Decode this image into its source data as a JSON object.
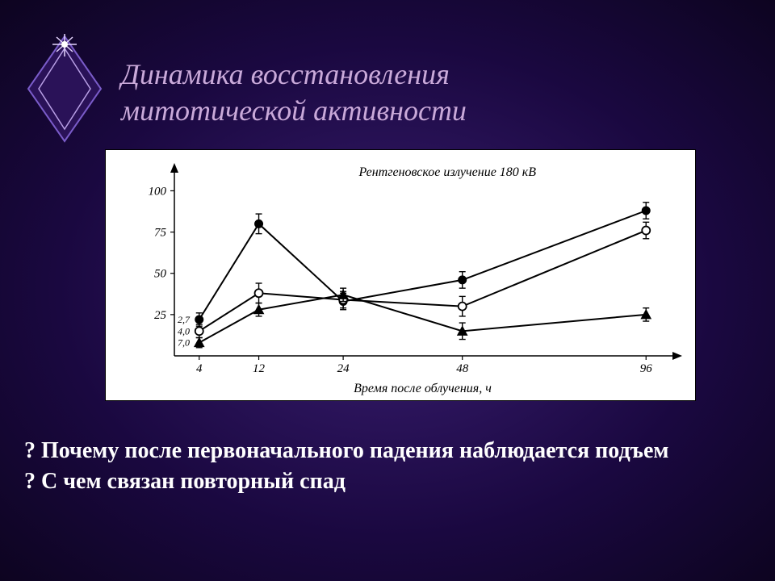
{
  "title": {
    "line1": "Динамика восстановления",
    "line2": "митотической активности",
    "color": "#c9a9d9",
    "font_size": 36,
    "italic": true
  },
  "background": {
    "gradient_center": "#3a1e72",
    "gradient_mid": "#1a0840",
    "gradient_edge": "#0d0420"
  },
  "decor_diamond": {
    "outer_stroke": "#7a5cc9",
    "outer_fill": "#2a1258",
    "inner_stroke": "#b9a0e6",
    "spark_color": "#e6d6ff"
  },
  "chart": {
    "type": "line",
    "background": "#ffffff",
    "axis_color": "#000000",
    "line_width_axis": 1.5,
    "line_width_series": 2,
    "font_family_chart": "cursive",
    "caption": "Рентгеновское излучение 180 кВ",
    "caption_fontsize": 16,
    "xlabel": "Время после облучения, ч",
    "xlabel_fontsize": 16,
    "xticks": [
      4,
      12,
      24,
      48,
      96
    ],
    "yticks": [
      25,
      50,
      75,
      100
    ],
    "ylim": [
      0,
      110
    ],
    "xlim": [
      0,
      100
    ],
    "start_labels": [
      "2,7",
      "4,0",
      "7,0"
    ],
    "marker_size": 5,
    "error_cap": 4,
    "series": [
      {
        "name": "filled-circle",
        "marker": "filled-circle",
        "color": "#000000",
        "points": [
          {
            "x": 4,
            "y": 22,
            "err": 4
          },
          {
            "x": 12,
            "y": 80,
            "err": 6
          },
          {
            "x": 24,
            "y": 33,
            "err": 5
          },
          {
            "x": 48,
            "y": 46,
            "err": 5
          },
          {
            "x": 96,
            "y": 88,
            "err": 5
          }
        ]
      },
      {
        "name": "open-circle",
        "marker": "open-circle",
        "color": "#000000",
        "points": [
          {
            "x": 4,
            "y": 15,
            "err": 4
          },
          {
            "x": 12,
            "y": 38,
            "err": 6
          },
          {
            "x": 24,
            "y": 34,
            "err": 5
          },
          {
            "x": 48,
            "y": 30,
            "err": 6
          },
          {
            "x": 96,
            "y": 76,
            "err": 5
          }
        ]
      },
      {
        "name": "filled-triangle",
        "marker": "filled-triangle",
        "color": "#000000",
        "points": [
          {
            "x": 4,
            "y": 8,
            "err": 3
          },
          {
            "x": 12,
            "y": 28,
            "err": 4
          },
          {
            "x": 24,
            "y": 37,
            "err": 4
          },
          {
            "x": 48,
            "y": 15,
            "err": 5
          },
          {
            "x": 96,
            "y": 25,
            "err": 4
          }
        ]
      }
    ]
  },
  "questions": {
    "q1": "? Почему после первоначального падения наблюдается подъем",
    "q2": "?  С чем связан повторный спад",
    "font_size": 28,
    "color": "#ffffff"
  }
}
